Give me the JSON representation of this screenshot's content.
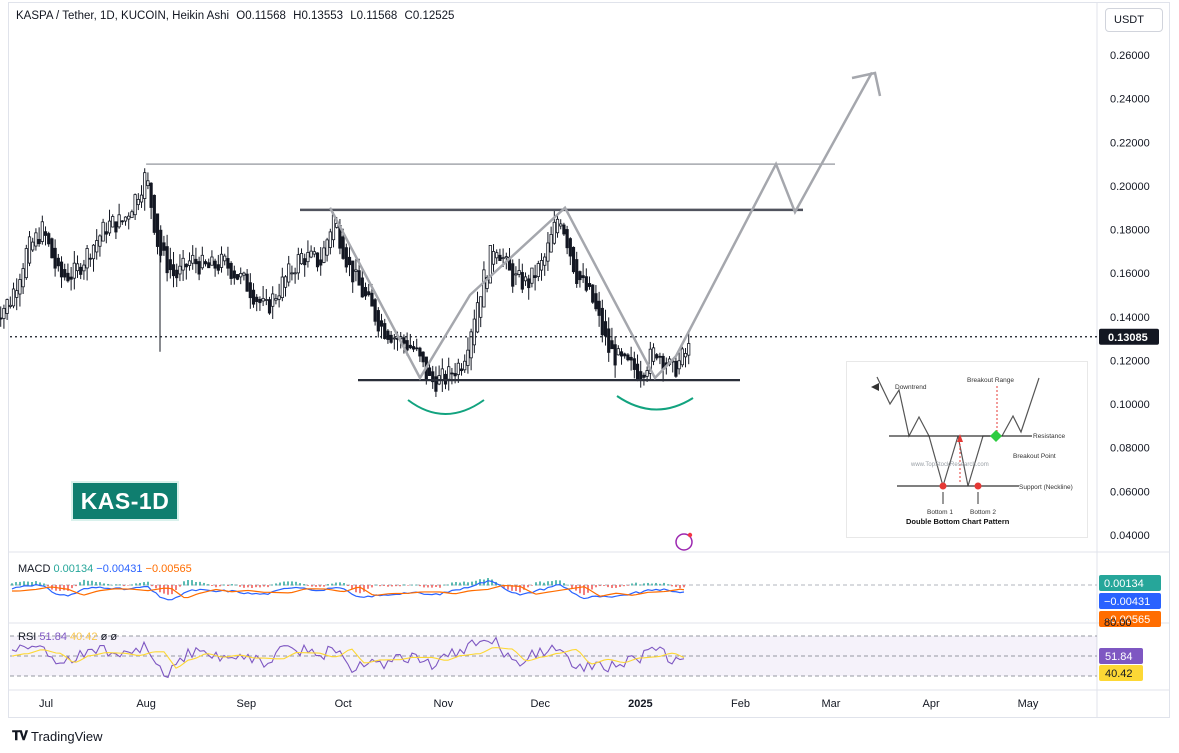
{
  "header": {
    "symbol": "KASPA / Tether, 1D, KUCOIN, Heikin Ashi",
    "open": "O0.11568",
    "high": "H0.13553",
    "low": "L0.11568",
    "close": "C0.12525"
  },
  "unit_label": "USDT",
  "badge": "KAS-1D",
  "price_axis": {
    "ticks": [
      "0.26000",
      "0.24000",
      "0.22000",
      "0.20000",
      "0.18000",
      "0.16000",
      "0.14000",
      "0.12000",
      "0.10000",
      "0.08000",
      "0.06000",
      "0.04000"
    ],
    "last_price": "0.13085"
  },
  "time_axis": {
    "labels": [
      "Jul",
      "Aug",
      "Sep",
      "Oct",
      "Nov",
      "Dec",
      "2025",
      "Feb",
      "Mar",
      "Apr",
      "May"
    ]
  },
  "macd": {
    "label": "MACD",
    "v1": "0.00134",
    "v2": "−0.00431",
    "v3": "−0.00565",
    "tag1": "0.00134",
    "tag2": "−0.00431",
    "tag3": "−0.00565"
  },
  "rsi": {
    "label": "RSI",
    "v1": "51.84",
    "v2": "40.42",
    "e1": "ø",
    "e2": "ø",
    "tag1": "51.84",
    "tag2": "40.42",
    "level_80": "80.00"
  },
  "inset": {
    "downtrend": "Downtrend",
    "breakout_range": "Breakout Range",
    "resistance": "Resistance",
    "breakout_point": "Breakout Point",
    "watermark": "www.TopStockResearch.com",
    "support": "Support (Neckline)",
    "bottom1": "Bottom 1",
    "bottom2": "Bottom 2",
    "title": "Double Bottom Chart Pattern"
  },
  "footer": {
    "brand": "TradingView"
  },
  "colors": {
    "up": "#131722",
    "down": "#131722",
    "pattern_line": "#a5a7ad",
    "level_line": "#50535e",
    "badge_bg": "#0f7e6f",
    "arc": "#12a37f",
    "macd_line": "#2962ff",
    "signal_line": "#ff6d00",
    "hist_pos": "#26a69a",
    "hist_neg": "#ef5350",
    "rsi_line": "#7e57c2",
    "rsi_ma": "#fdd835"
  },
  "chart_data": {
    "type": "candlestick",
    "title": "KASPA / Tether, 1D, KUCOIN, Heikin Ashi",
    "ylim": [
      0.03,
      0.27
    ],
    "x_labels": [
      "Jul",
      "Aug",
      "Sep",
      "Oct",
      "Nov",
      "Dec",
      "2025",
      "Feb",
      "Mar",
      "Apr",
      "May"
    ],
    "close_path": [
      [
        "2024-06-15",
        0.14
      ],
      [
        "2024-06-20",
        0.148
      ],
      [
        "2024-06-25",
        0.17
      ],
      [
        "2024-06-30",
        0.18
      ],
      [
        "2024-07-05",
        0.158
      ],
      [
        "2024-07-10",
        0.16
      ],
      [
        "2024-07-15",
        0.172
      ],
      [
        "2024-07-20",
        0.182
      ],
      [
        "2024-07-25",
        0.184
      ],
      [
        "2024-08-01",
        0.205
      ],
      [
        "2024-08-05",
        0.17
      ],
      [
        "2024-08-10",
        0.158
      ],
      [
        "2024-08-15",
        0.166
      ],
      [
        "2024-08-20",
        0.162
      ],
      [
        "2024-08-25",
        0.165
      ],
      [
        "2024-09-01",
        0.155
      ],
      [
        "2024-09-07",
        0.143
      ],
      [
        "2024-09-12",
        0.155
      ],
      [
        "2024-09-18",
        0.168
      ],
      [
        "2024-09-24",
        0.165
      ],
      [
        "2024-09-28",
        0.186
      ],
      [
        "2024-10-03",
        0.162
      ],
      [
        "2024-10-08",
        0.148
      ],
      [
        "2024-10-13",
        0.135
      ],
      [
        "2024-10-18",
        0.13
      ],
      [
        "2024-10-23",
        0.125
      ],
      [
        "2024-10-28",
        0.11
      ],
      [
        "2024-11-02",
        0.112
      ],
      [
        "2024-11-07",
        0.12
      ],
      [
        "2024-11-12",
        0.15
      ],
      [
        "2024-11-17",
        0.175
      ],
      [
        "2024-11-22",
        0.158
      ],
      [
        "2024-11-27",
        0.155
      ],
      [
        "2024-12-02",
        0.165
      ],
      [
        "2024-12-07",
        0.188
      ],
      [
        "2024-12-12",
        0.16
      ],
      [
        "2024-12-17",
        0.148
      ],
      [
        "2024-12-22",
        0.125
      ],
      [
        "2024-12-27",
        0.118
      ],
      [
        "2025-01-01",
        0.115
      ],
      [
        "2025-01-06",
        0.125
      ],
      [
        "2025-01-11",
        0.115
      ],
      [
        "2025-01-16",
        0.1252
      ]
    ],
    "annotations": {
      "resistance_upper": 0.21,
      "resistance_pattern": 0.189,
      "neckline_support": 0.111,
      "projection": [
        [
          "2025-01-15",
          0.12
        ],
        [
          "2025-02-23",
          0.21
        ],
        [
          "2025-03-01",
          0.188
        ],
        [
          "2025-03-27",
          0.252
        ]
      ],
      "double_bottoms": [
        "Nov",
        "2025"
      ]
    },
    "macd": {
      "macd": -0.00431,
      "signal": -0.00565,
      "histogram": 0.00134
    },
    "rsi": {
      "rsi": 51.84,
      "rsi_ma": 40.42,
      "upper_band": 80.0
    }
  }
}
